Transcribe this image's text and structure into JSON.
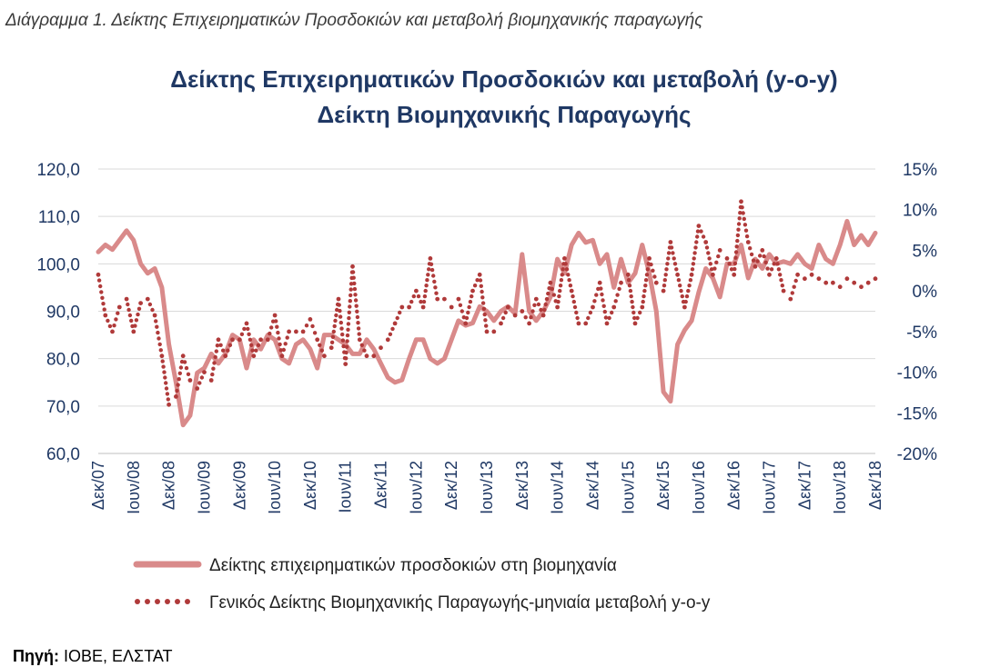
{
  "caption": "Διάγραμμα 1. Δείκτης Επιχειρηματικών Προσδοκιών και μεταβολή βιομηχανικής παραγωγής",
  "source": {
    "label": "Πηγή:",
    "text": "ΙΟΒΕ, ΕΛΣΤΑΤ"
  },
  "colors": {
    "title": "#1f3864",
    "axis_text": "#1f3864",
    "line": "#d98a8a",
    "dots": "#b03a3a",
    "grid": "#d9d9d9"
  },
  "chart_data": {
    "type": "line",
    "title_lines": [
      "Δείκτης Επιχειρηματικών Προσδοκιών και μεταβολή (y-o-y)",
      "Δείκτη Βιομηχανικής Παραγωγής"
    ],
    "ylim_left": [
      60,
      120
    ],
    "yticks_left": [
      "120,0",
      "110,0",
      "100,0",
      "90,0",
      "80,0",
      "70,0",
      "60,0"
    ],
    "ylim_right": [
      -20,
      15
    ],
    "yticks_right": [
      "15%",
      "10%",
      "5%",
      "0%",
      "-5%",
      "-10%",
      "-15%",
      "-20%"
    ],
    "x_tick_labels": [
      "Δεκ/07",
      "Ιουν/08",
      "Δεκ/08",
      "Ιουν/09",
      "Δεκ/09",
      "Ιουν/10",
      "Δεκ/10",
      "Ιουν/11",
      "Δεκ/11",
      "Ιουν/12",
      "Δεκ/12",
      "Ιουν/13",
      "Δεκ/13",
      "Ιουν/14",
      "Δεκ/14",
      "Ιουν/15",
      "Δεκ/15",
      "Ιουν/16",
      "Δεκ/16",
      "Ιουν/17",
      "Δεκ/17",
      "Ιουν/18",
      "Δεκ/18"
    ],
    "grid": "horizontal",
    "legend_position": "bottom",
    "series": [
      {
        "name": "Δείκτης επιχειρηματικών προσδοκιών στη βιομηχανία",
        "style": "line",
        "axis": "left",
        "x_points": [
          0.0,
          0.2,
          0.4,
          0.6,
          0.8,
          1.0,
          1.2,
          1.4,
          1.6,
          1.8,
          2.0,
          2.2,
          2.4,
          2.6,
          2.8,
          3.0,
          3.2,
          3.4,
          3.6,
          3.8,
          4.0,
          4.2,
          4.4,
          4.6,
          4.8,
          5.0,
          5.2,
          5.4,
          5.6,
          5.8,
          6.0,
          6.2,
          6.4,
          6.6,
          6.8,
          7.0,
          7.2,
          7.4,
          7.6,
          7.8,
          8.0,
          8.2,
          8.4,
          8.6,
          8.8,
          9.0,
          9.2,
          9.4,
          9.6,
          9.8,
          10.0,
          10.2,
          10.4,
          10.6,
          10.8,
          11.0,
          11.2,
          11.4,
          11.6,
          11.8,
          12.0,
          12.2,
          12.4,
          12.6,
          12.8,
          13.0,
          13.2,
          13.4,
          13.6,
          13.8,
          14.0,
          14.2,
          14.4,
          14.6,
          14.8,
          15.0,
          15.2,
          15.4,
          15.6,
          15.8,
          16.0,
          16.2,
          16.4,
          16.6,
          16.8,
          17.0,
          17.2,
          17.4,
          17.6,
          17.8,
          18.0,
          18.2,
          18.4,
          18.6,
          18.8,
          19.0,
          19.2,
          19.4,
          19.6,
          19.8,
          20.0,
          20.2,
          20.4,
          20.6,
          20.8,
          21.0,
          21.2,
          21.4,
          21.6,
          21.8,
          22.0
        ],
        "values": [
          102.5,
          104.0,
          103.0,
          105.0,
          107.0,
          105.0,
          100.0,
          98.0,
          99.0,
          95.0,
          83.0,
          75.0,
          66.0,
          68.0,
          77.0,
          78.0,
          81.0,
          79.0,
          81.0,
          85.0,
          84.0,
          78.0,
          84.0,
          82.0,
          85.0,
          84.0,
          80.0,
          79.0,
          83.0,
          84.0,
          82.0,
          78.0,
          85.0,
          85.0,
          84.0,
          83.0,
          81.0,
          81.0,
          84.0,
          82.0,
          79.0,
          76.0,
          75.0,
          75.5,
          80.0,
          84.0,
          84.0,
          80.0,
          79.0,
          80.0,
          84.0,
          88.0,
          87.0,
          87.5,
          91.0,
          90.0,
          88.0,
          90.0,
          91.0,
          89.5,
          102.0,
          90.0,
          88.0,
          90.0,
          93.0,
          101.0,
          98.0,
          104.0,
          106.5,
          104.5,
          105.0,
          100.0,
          102.0,
          95.0,
          101.0,
          96.0,
          98.0,
          104.0,
          98.0,
          90.0,
          73.0,
          71.0,
          83.0,
          86.0,
          88.0,
          94.0,
          99.0,
          97.0,
          93.0,
          100.0,
          100.0,
          104.0,
          97.0,
          101.0,
          99.0,
          102.0,
          100.0,
          100.5,
          100.0,
          102.0,
          100.0,
          99.0,
          104.0,
          101.0,
          100.0,
          104.0,
          109.0,
          104.0,
          106.0,
          104.0,
          106.5
        ]
      },
      {
        "name": "Γενικός Δείκτης Βιομηχανικής Παραγωγής-μηνιαία μεταβολή y-o-y",
        "style": "dotted",
        "axis": "right",
        "x_points": [
          0.0,
          0.2,
          0.4,
          0.6,
          0.8,
          1.0,
          1.2,
          1.4,
          1.6,
          1.8,
          2.0,
          2.2,
          2.4,
          2.6,
          2.8,
          3.0,
          3.2,
          3.4,
          3.6,
          3.8,
          4.0,
          4.2,
          4.4,
          4.6,
          4.8,
          5.0,
          5.2,
          5.4,
          5.6,
          5.8,
          6.0,
          6.2,
          6.4,
          6.6,
          6.8,
          7.0,
          7.2,
          7.4,
          7.6,
          7.8,
          8.0,
          8.2,
          8.4,
          8.6,
          8.8,
          9.0,
          9.2,
          9.4,
          9.6,
          9.8,
          10.0,
          10.2,
          10.4,
          10.6,
          10.8,
          11.0,
          11.2,
          11.4,
          11.6,
          11.8,
          12.0,
          12.2,
          12.4,
          12.6,
          12.8,
          13.0,
          13.2,
          13.4,
          13.6,
          13.8,
          14.0,
          14.2,
          14.4,
          14.6,
          14.8,
          15.0,
          15.2,
          15.4,
          15.6,
          15.8,
          16.0,
          16.2,
          16.4,
          16.6,
          16.8,
          17.0,
          17.2,
          17.4,
          17.6,
          17.8,
          18.0,
          18.2,
          18.4,
          18.6,
          18.8,
          19.0,
          19.2,
          19.4,
          19.6,
          19.8,
          20.0,
          20.2,
          20.4,
          20.6,
          20.8,
          21.0,
          21.2,
          21.4,
          21.6,
          21.8,
          22.0
        ],
        "values": [
          2.0,
          -3.0,
          -5.0,
          -2.0,
          -1.0,
          -5.0,
          -1.5,
          -1.0,
          -3.0,
          -8.0,
          -14.0,
          -13.0,
          -8.0,
          -11.0,
          -12.0,
          -10.0,
          -11.0,
          -6.0,
          -8.0,
          -6.0,
          -6.0,
          -4.0,
          -8.0,
          -6.0,
          -6.0,
          -3.0,
          -8.0,
          -5.0,
          -5.0,
          -5.0,
          -3.5,
          -6.0,
          -8.0,
          -7.0,
          -1.0,
          -9.0,
          3.0,
          -6.0,
          -8.0,
          -8.0,
          -7.0,
          -6.0,
          -4.0,
          -2.0,
          -2.0,
          0.0,
          -2.0,
          4.0,
          -1.0,
          -1.0,
          -2.0,
          -1.0,
          -4.0,
          0.0,
          2.0,
          -5.0,
          -5.0,
          -4.0,
          -2.0,
          -3.0,
          -2.5,
          -4.0,
          -1.0,
          -3.0,
          1.0,
          -2.0,
          4.0,
          0.0,
          -4.0,
          -4.0,
          -2.0,
          1.0,
          -4.0,
          -2.0,
          1.0,
          2.0,
          -4.0,
          -2.0,
          4.0,
          1.0,
          0.0,
          6.0,
          2.0,
          -2.0,
          2.0,
          8.0,
          6.0,
          2.0,
          5.0,
          4.0,
          2.0,
          11.0,
          6.0,
          3.0,
          5.0,
          2.0,
          4.0,
          0.0,
          -1.0,
          2.0,
          1.5,
          2.0,
          1.5,
          1.0,
          1.0,
          0.5,
          1.5,
          1.0,
          0.5,
          1.0,
          1.5
        ]
      }
    ]
  }
}
